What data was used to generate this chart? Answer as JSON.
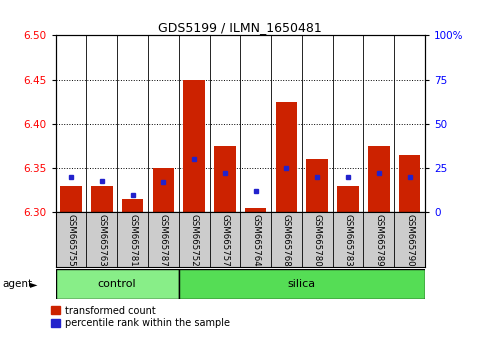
{
  "title": "GDS5199 / ILMN_1650481",
  "samples": [
    "GSM665755",
    "GSM665763",
    "GSM665781",
    "GSM665787",
    "GSM665752",
    "GSM665757",
    "GSM665764",
    "GSM665768",
    "GSM665780",
    "GSM665783",
    "GSM665789",
    "GSM665790"
  ],
  "groups": [
    "control",
    "control",
    "control",
    "control",
    "silica",
    "silica",
    "silica",
    "silica",
    "silica",
    "silica",
    "silica",
    "silica"
  ],
  "red_values": [
    6.33,
    6.33,
    6.315,
    6.35,
    6.45,
    6.375,
    6.305,
    6.425,
    6.36,
    6.33,
    6.375,
    6.365
  ],
  "blue_percentiles": [
    20,
    18,
    10,
    17,
    30,
    22,
    12,
    25,
    20,
    20,
    22,
    20
  ],
  "y_min": 6.3,
  "y_max": 6.5,
  "y_ticks": [
    6.3,
    6.35,
    6.4,
    6.45,
    6.5
  ],
  "right_y_ticks": [
    0,
    25,
    50,
    75,
    100
  ],
  "right_y_labels": [
    "0",
    "25",
    "50",
    "75",
    "100%"
  ],
  "bar_color": "#cc2200",
  "blue_color": "#2222cc",
  "control_color": "#88ee88",
  "silica_color": "#55dd55",
  "label_bg_color": "#cccccc",
  "plot_bg": "#ffffff",
  "n_control": 4,
  "n_silica": 8,
  "bar_width": 0.7
}
